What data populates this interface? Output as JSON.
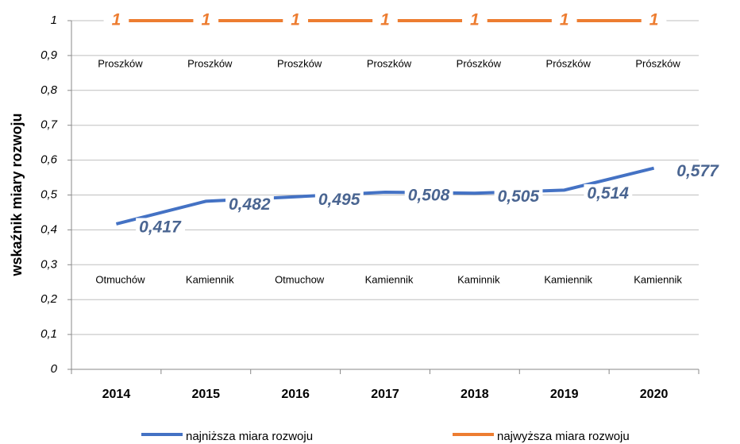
{
  "chart_data": {
    "type": "line",
    "y_label": "wskaźnik miary rozwoju",
    "categories": [
      "2014",
      "2015",
      "2016",
      "2017",
      "2018",
      "2019",
      "2020"
    ],
    "series": [
      {
        "name": "najniższa miara rozwoju",
        "color": "#4472c4",
        "values": [
          0.417,
          0.482,
          0.495,
          0.508,
          0.505,
          0.514,
          0.577
        ],
        "value_labels": [
          "0,417",
          "0,482",
          "0,495",
          "0,508",
          "0,505",
          "0,514",
          "0,577"
        ],
        "point_names": [
          "Otmuchów",
          "Kamiennik",
          "Otmuchow",
          "Kamiennik",
          "Kaminnik",
          "Kamiennik",
          "Kamiennik"
        ]
      },
      {
        "name": "najwyższa  miara rozwoju",
        "color": "#ed7d31",
        "values": [
          1,
          1,
          1,
          1,
          1,
          1,
          1
        ],
        "point_names": [
          "Proszków",
          "Proszków",
          "Proszków",
          "Proszków",
          "Prószków",
          "Prószków",
          "Prószków"
        ]
      }
    ],
    "ylim": [
      0,
      1
    ],
    "yticks": [
      0,
      {
        "value": 0.1,
        "label": "0,1"
      },
      {
        "value": 0.2,
        "label": "0,2"
      },
      {
        "value": 0.3,
        "label": "0,3"
      },
      {
        "value": 0.4,
        "label": "0,4"
      },
      {
        "value": 0.5,
        "label": "0,5"
      },
      {
        "value": 0.6,
        "label": "0,6"
      },
      {
        "value": 0.7,
        "label": "0,7"
      },
      {
        "value": 0.8,
        "label": "0,8"
      },
      {
        "value": 0.9,
        "label": "0,9"
      },
      1
    ],
    "grid": true,
    "legend": "bottom"
  }
}
